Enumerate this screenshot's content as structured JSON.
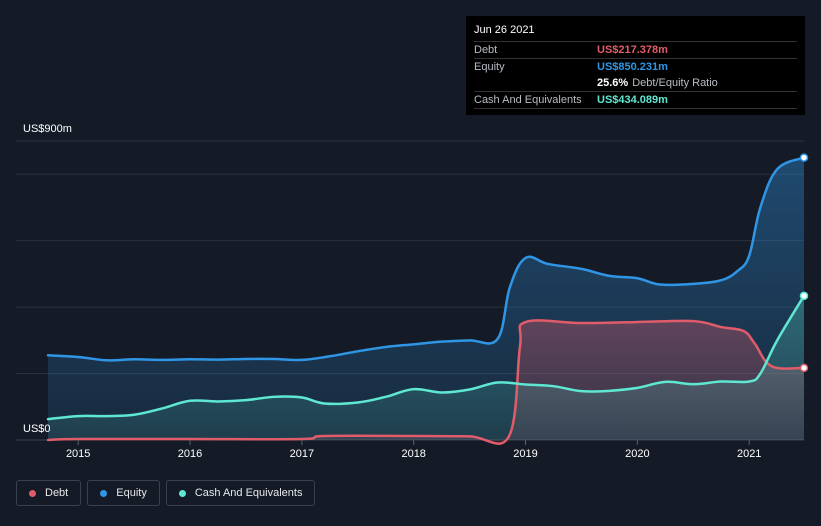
{
  "tooltip": {
    "date": "Jun 26 2021",
    "debt_label": "Debt",
    "debt_value": "US$217.378m",
    "equity_label": "Equity",
    "equity_value": "US$850.231m",
    "ratio_value": "25.6%",
    "ratio_label": "Debt/Equity Ratio",
    "cash_label": "Cash And Equivalents",
    "cash_value": "US$434.089m"
  },
  "legend": {
    "debt": "Debt",
    "equity": "Equity",
    "cash": "Cash And Equivalents"
  },
  "colors": {
    "debt": "#e05c6a",
    "equity": "#2f96e6",
    "cash": "#5ee8d2",
    "background": "#151b26"
  },
  "chart_data": {
    "type": "area",
    "title": "",
    "ylabel_top": "US$900m",
    "ylabel_bottom": "US$0",
    "ylim": [
      0,
      900
    ],
    "xlim": [
      2014.73,
      2021.49
    ],
    "x_ticks": [
      2015,
      2016,
      2017,
      2018,
      2019,
      2020,
      2021
    ],
    "x_tick_labels": [
      "2015",
      "2016",
      "2017",
      "2018",
      "2019",
      "2020",
      "2021"
    ],
    "series": [
      {
        "name": "Equity",
        "key": "equity",
        "points": [
          [
            2014.73,
            255
          ],
          [
            2015.0,
            250
          ],
          [
            2015.25,
            240
          ],
          [
            2015.5,
            243
          ],
          [
            2015.75,
            241
          ],
          [
            2016.0,
            243
          ],
          [
            2016.25,
            242
          ],
          [
            2016.5,
            244
          ],
          [
            2016.75,
            244
          ],
          [
            2017.0,
            241
          ],
          [
            2017.25,
            252
          ],
          [
            2017.5,
            267
          ],
          [
            2017.75,
            280
          ],
          [
            2018.0,
            288
          ],
          [
            2018.25,
            296
          ],
          [
            2018.5,
            300
          ],
          [
            2018.75,
            304
          ],
          [
            2018.86,
            460
          ],
          [
            2019.0,
            548
          ],
          [
            2019.2,
            530
          ],
          [
            2019.5,
            515
          ],
          [
            2019.75,
            494
          ],
          [
            2020.0,
            487
          ],
          [
            2020.2,
            468
          ],
          [
            2020.5,
            470
          ],
          [
            2020.75,
            481
          ],
          [
            2020.9,
            510
          ],
          [
            2021.0,
            555
          ],
          [
            2021.1,
            700
          ],
          [
            2021.25,
            815
          ],
          [
            2021.49,
            850
          ]
        ]
      },
      {
        "name": "Debt",
        "key": "debt",
        "points": [
          [
            2014.73,
            0
          ],
          [
            2015.0,
            3
          ],
          [
            2016.0,
            3
          ],
          [
            2017.0,
            3
          ],
          [
            2017.2,
            12
          ],
          [
            2018.0,
            12
          ],
          [
            2018.5,
            11
          ],
          [
            2018.85,
            10
          ],
          [
            2018.95,
            280
          ],
          [
            2019.0,
            355
          ],
          [
            2019.5,
            352
          ],
          [
            2020.0,
            355
          ],
          [
            2020.5,
            358
          ],
          [
            2020.75,
            340
          ],
          [
            2020.95,
            328
          ],
          [
            2021.05,
            290
          ],
          [
            2021.2,
            222
          ],
          [
            2021.49,
            217
          ]
        ]
      },
      {
        "name": "Cash And Equivalents",
        "key": "cash",
        "points": [
          [
            2014.73,
            63
          ],
          [
            2015.0,
            72
          ],
          [
            2015.25,
            72
          ],
          [
            2015.5,
            76
          ],
          [
            2015.75,
            95
          ],
          [
            2016.0,
            118
          ],
          [
            2016.25,
            116
          ],
          [
            2016.5,
            120
          ],
          [
            2016.75,
            130
          ],
          [
            2017.0,
            128
          ],
          [
            2017.2,
            110
          ],
          [
            2017.5,
            113
          ],
          [
            2017.75,
            130
          ],
          [
            2018.0,
            153
          ],
          [
            2018.25,
            143
          ],
          [
            2018.5,
            152
          ],
          [
            2018.75,
            173
          ],
          [
            2019.0,
            167
          ],
          [
            2019.25,
            162
          ],
          [
            2019.5,
            147
          ],
          [
            2019.75,
            148
          ],
          [
            2020.0,
            157
          ],
          [
            2020.25,
            175
          ],
          [
            2020.5,
            168
          ],
          [
            2020.75,
            176
          ],
          [
            2021.0,
            176
          ],
          [
            2021.1,
            200
          ],
          [
            2021.25,
            300
          ],
          [
            2021.49,
            434
          ]
        ]
      }
    ]
  }
}
